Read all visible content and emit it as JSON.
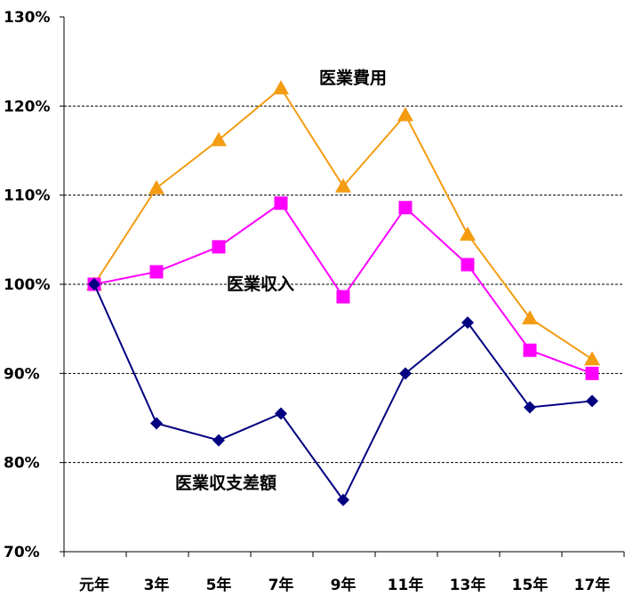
{
  "chart_data": {
    "type": "line",
    "categories": [
      "元年",
      "3年",
      "5年",
      "7年",
      "9年",
      "11年",
      "13年",
      "15年",
      "17年"
    ],
    "ylim": [
      70,
      130
    ],
    "yticks": [
      "70%",
      "80%",
      "90%",
      "100%",
      "110%",
      "120%",
      "130%"
    ],
    "ytick_values": [
      70,
      80,
      90,
      100,
      110,
      120,
      130
    ],
    "grid": "horizontal dashed",
    "series": [
      {
        "name": "医業費用",
        "color": "#F39C12",
        "marker": "triangle",
        "values": [
          100,
          110.8,
          116.2,
          122.0,
          111.0,
          119.0,
          105.6,
          96.2,
          91.6
        ]
      },
      {
        "name": "医業収入",
        "color": "#FF00FF",
        "marker": "square",
        "values": [
          100,
          101.4,
          104.2,
          109.1,
          98.6,
          108.6,
          102.2,
          92.6,
          90.0
        ]
      },
      {
        "name": "医業収支差額",
        "color": "#000080",
        "marker": "diamond",
        "values": [
          100,
          84.4,
          82.5,
          85.5,
          75.8,
          90.0,
          95.7,
          86.2,
          86.9
        ]
      }
    ]
  }
}
